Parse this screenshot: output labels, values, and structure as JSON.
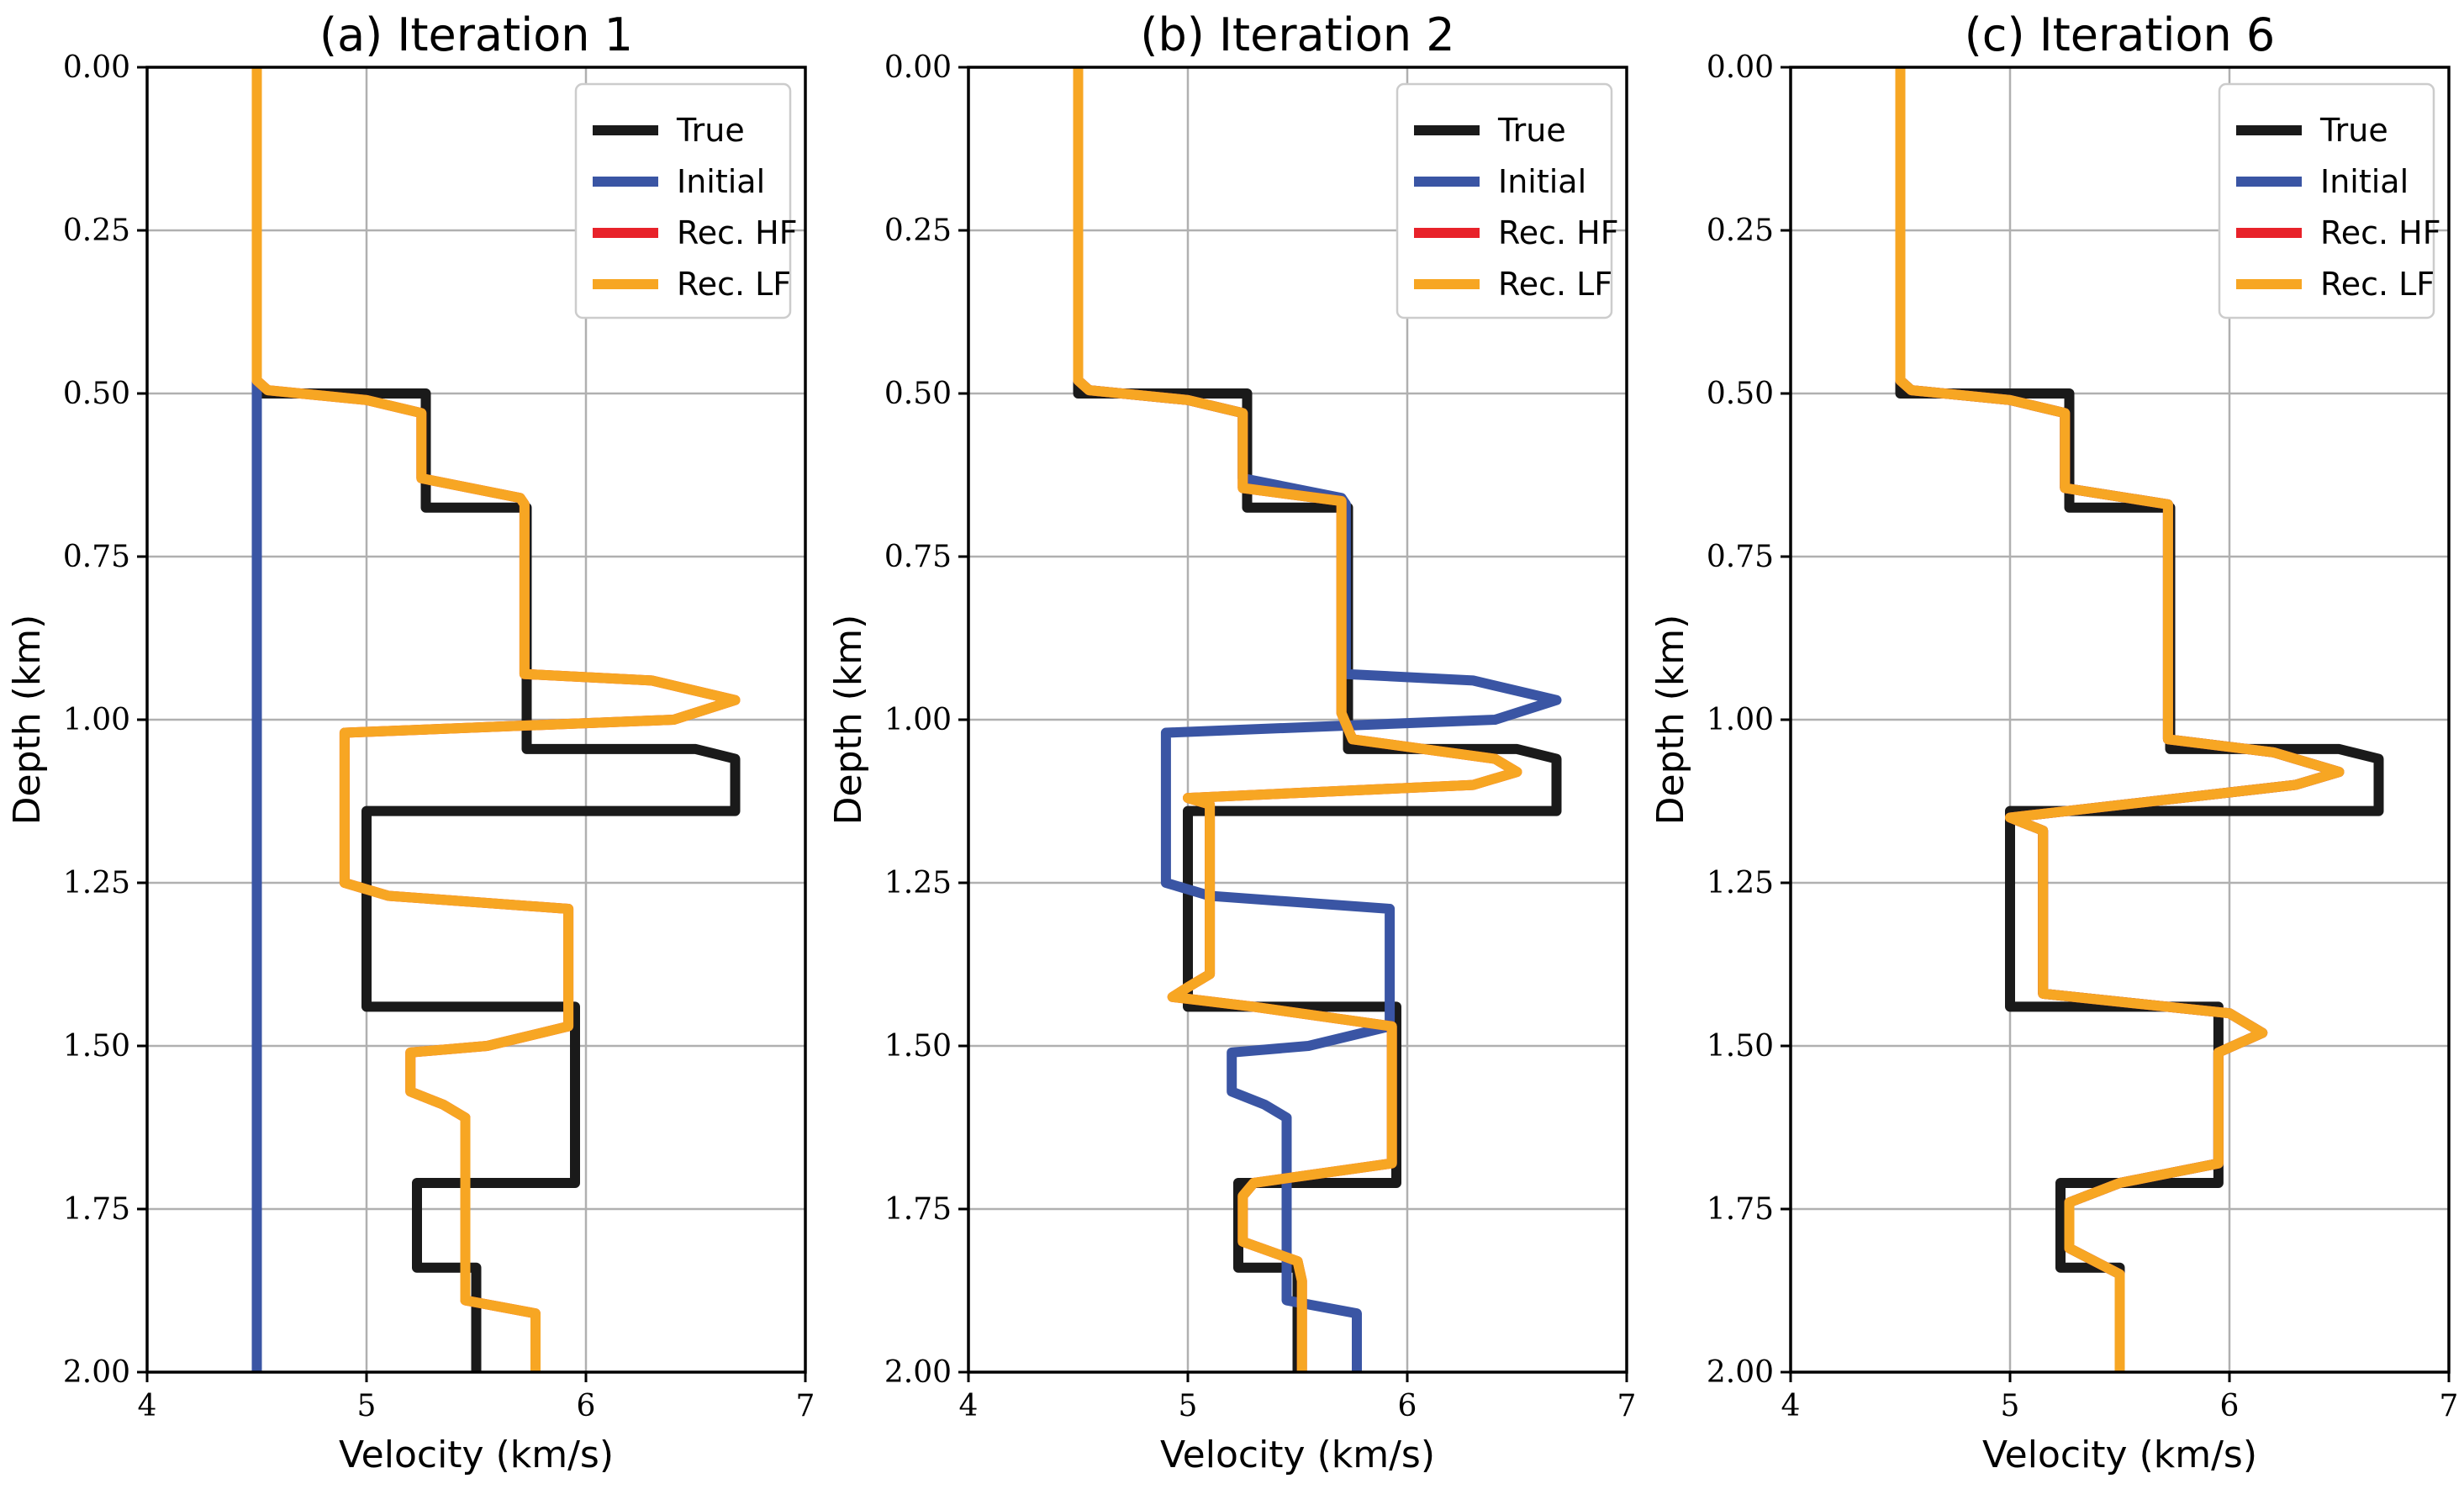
{
  "chart_data": [
    {
      "type": "line",
      "title": "(a) Iteration 1",
      "xlabel": "Velocity (km/s)",
      "ylabel": "Depth (km)",
      "xlim": [
        4,
        7
      ],
      "ylim": [
        2.0,
        0.0
      ],
      "xticks": [
        "4",
        "5",
        "6",
        "7"
      ],
      "yticks": [
        "0.00",
        "0.25",
        "0.50",
        "0.75",
        "1.00",
        "1.25",
        "1.50",
        "1.75",
        "2.00"
      ],
      "grid": true,
      "legend_position": "top-right",
      "series": [
        {
          "name": "True",
          "color": "#1a1a1a",
          "points": [
            [
              4.5,
              0
            ],
            [
              4.5,
              0.5
            ],
            [
              5.27,
              0.5
            ],
            [
              5.27,
              0.675
            ],
            [
              5.73,
              0.675
            ],
            [
              5.73,
              1.045
            ],
            [
              6.5,
              1.045
            ],
            [
              6.68,
              1.06
            ],
            [
              6.68,
              1.14
            ],
            [
              5.0,
              1.14
            ],
            [
              5.0,
              1.44
            ],
            [
              5.95,
              1.44
            ],
            [
              5.95,
              1.71
            ],
            [
              5.23,
              1.71
            ],
            [
              5.23,
              1.84
            ],
            [
              5.5,
              1.84
            ],
            [
              5.5,
              2.0
            ]
          ]
        },
        {
          "name": "Initial",
          "color": "#3a55a4",
          "points": [
            [
              4.5,
              0
            ],
            [
              4.5,
              2.0
            ]
          ]
        },
        {
          "name": "Rec. HF",
          "color": "#e8222a",
          "points": [
            [
              4.5,
              0
            ],
            [
              4.5,
              0.48
            ],
            [
              4.55,
              0.495
            ],
            [
              5.0,
              0.51
            ],
            [
              5.25,
              0.53
            ],
            [
              5.25,
              0.63
            ],
            [
              5.7,
              0.66
            ],
            [
              5.72,
              0.67
            ],
            [
              5.72,
              0.93
            ],
            [
              6.3,
              0.94
            ],
            [
              6.68,
              0.97
            ],
            [
              6.4,
              1.0
            ],
            [
              4.9,
              1.02
            ],
            [
              4.9,
              1.25
            ],
            [
              5.1,
              1.27
            ],
            [
              5.92,
              1.29
            ],
            [
              5.92,
              1.47
            ],
            [
              5.55,
              1.5
            ],
            [
              5.2,
              1.51
            ],
            [
              5.2,
              1.57
            ],
            [
              5.35,
              1.59
            ],
            [
              5.45,
              1.61
            ],
            [
              5.45,
              1.89
            ],
            [
              5.77,
              1.91
            ],
            [
              5.77,
              2.0
            ]
          ]
        },
        {
          "name": "Rec. LF",
          "color": "#f7a623",
          "points": [
            [
              4.5,
              0
            ],
            [
              4.5,
              0.48
            ],
            [
              4.55,
              0.495
            ],
            [
              5.0,
              0.51
            ],
            [
              5.25,
              0.53
            ],
            [
              5.25,
              0.63
            ],
            [
              5.7,
              0.66
            ],
            [
              5.72,
              0.67
            ],
            [
              5.72,
              0.93
            ],
            [
              6.3,
              0.94
            ],
            [
              6.68,
              0.97
            ],
            [
              6.4,
              1.0
            ],
            [
              4.9,
              1.02
            ],
            [
              4.9,
              1.25
            ],
            [
              5.1,
              1.27
            ],
            [
              5.92,
              1.29
            ],
            [
              5.92,
              1.47
            ],
            [
              5.55,
              1.5
            ],
            [
              5.2,
              1.51
            ],
            [
              5.2,
              1.57
            ],
            [
              5.35,
              1.59
            ],
            [
              5.45,
              1.61
            ],
            [
              5.45,
              1.89
            ],
            [
              5.77,
              1.91
            ],
            [
              5.77,
              2.0
            ]
          ]
        }
      ]
    },
    {
      "type": "line",
      "title": "(b) Iteration 2",
      "xlabel": "Velocity (km/s)",
      "ylabel": "Depth (km)",
      "xlim": [
        4,
        7
      ],
      "ylim": [
        2.0,
        0.0
      ],
      "xticks": [
        "4",
        "5",
        "6",
        "7"
      ],
      "yticks": [
        "0.00",
        "0.25",
        "0.50",
        "0.75",
        "1.00",
        "1.25",
        "1.50",
        "1.75",
        "2.00"
      ],
      "grid": true,
      "legend_position": "top-right",
      "series": [
        {
          "name": "True",
          "color": "#1a1a1a",
          "points": [
            [
              4.5,
              0
            ],
            [
              4.5,
              0.5
            ],
            [
              5.27,
              0.5
            ],
            [
              5.27,
              0.675
            ],
            [
              5.73,
              0.675
            ],
            [
              5.73,
              1.045
            ],
            [
              6.5,
              1.045
            ],
            [
              6.68,
              1.06
            ],
            [
              6.68,
              1.14
            ],
            [
              5.0,
              1.14
            ],
            [
              5.0,
              1.44
            ],
            [
              5.95,
              1.44
            ],
            [
              5.95,
              1.71
            ],
            [
              5.23,
              1.71
            ],
            [
              5.23,
              1.84
            ],
            [
              5.5,
              1.84
            ],
            [
              5.5,
              2.0
            ]
          ]
        },
        {
          "name": "Initial",
          "color": "#3a55a4",
          "points": [
            [
              4.5,
              0
            ],
            [
              4.5,
              0.48
            ],
            [
              4.55,
              0.495
            ],
            [
              5.0,
              0.51
            ],
            [
              5.25,
              0.53
            ],
            [
              5.25,
              0.63
            ],
            [
              5.7,
              0.66
            ],
            [
              5.72,
              0.67
            ],
            [
              5.72,
              0.93
            ],
            [
              6.3,
              0.94
            ],
            [
              6.68,
              0.97
            ],
            [
              6.4,
              1.0
            ],
            [
              4.9,
              1.02
            ],
            [
              4.9,
              1.25
            ],
            [
              5.1,
              1.27
            ],
            [
              5.92,
              1.29
            ],
            [
              5.92,
              1.47
            ],
            [
              5.55,
              1.5
            ],
            [
              5.2,
              1.51
            ],
            [
              5.2,
              1.57
            ],
            [
              5.35,
              1.59
            ],
            [
              5.45,
              1.61
            ],
            [
              5.45,
              1.89
            ],
            [
              5.77,
              1.91
            ],
            [
              5.77,
              2.0
            ]
          ]
        },
        {
          "name": "Rec. HF",
          "color": "#e8222a",
          "points": [
            [
              4.5,
              0
            ],
            [
              4.5,
              0.48
            ],
            [
              4.55,
              0.495
            ],
            [
              5.0,
              0.51
            ],
            [
              5.25,
              0.53
            ],
            [
              5.25,
              0.645
            ],
            [
              5.7,
              0.665
            ],
            [
              5.7,
              0.99
            ],
            [
              5.75,
              1.03
            ],
            [
              6.4,
              1.06
            ],
            [
              6.5,
              1.08
            ],
            [
              6.3,
              1.1
            ],
            [
              5.0,
              1.12
            ],
            [
              5.1,
              1.13
            ],
            [
              5.1,
              1.39
            ],
            [
              5.0,
              1.41
            ],
            [
              4.93,
              1.425
            ],
            [
              5.3,
              1.44
            ],
            [
              5.93,
              1.47
            ],
            [
              5.93,
              1.68
            ],
            [
              5.3,
              1.71
            ],
            [
              5.25,
              1.73
            ],
            [
              5.25,
              1.8
            ],
            [
              5.5,
              1.83
            ],
            [
              5.52,
              1.86
            ],
            [
              5.52,
              2.0
            ]
          ]
        },
        {
          "name": "Rec. LF",
          "color": "#f7a623",
          "points": [
            [
              4.5,
              0
            ],
            [
              4.5,
              0.48
            ],
            [
              4.55,
              0.495
            ],
            [
              5.0,
              0.51
            ],
            [
              5.25,
              0.53
            ],
            [
              5.25,
              0.645
            ],
            [
              5.7,
              0.665
            ],
            [
              5.7,
              0.99
            ],
            [
              5.75,
              1.03
            ],
            [
              6.4,
              1.06
            ],
            [
              6.5,
              1.08
            ],
            [
              6.3,
              1.1
            ],
            [
              5.0,
              1.12
            ],
            [
              5.1,
              1.13
            ],
            [
              5.1,
              1.39
            ],
            [
              5.0,
              1.41
            ],
            [
              4.93,
              1.425
            ],
            [
              5.3,
              1.44
            ],
            [
              5.93,
              1.47
            ],
            [
              5.93,
              1.68
            ],
            [
              5.3,
              1.71
            ],
            [
              5.25,
              1.73
            ],
            [
              5.25,
              1.8
            ],
            [
              5.5,
              1.83
            ],
            [
              5.52,
              1.86
            ],
            [
              5.52,
              2.0
            ]
          ]
        }
      ]
    },
    {
      "type": "line",
      "title": "(c) Iteration 6",
      "xlabel": "Velocity (km/s)",
      "ylabel": "Depth (km)",
      "xlim": [
        4,
        7
      ],
      "ylim": [
        2.0,
        0.0
      ],
      "xticks": [
        "4",
        "5",
        "6",
        "7"
      ],
      "yticks": [
        "0.00",
        "0.25",
        "0.50",
        "0.75",
        "1.00",
        "1.25",
        "1.50",
        "1.75",
        "2.00"
      ],
      "grid": true,
      "legend_position": "top-right",
      "series": [
        {
          "name": "True",
          "color": "#1a1a1a",
          "points": [
            [
              4.5,
              0
            ],
            [
              4.5,
              0.5
            ],
            [
              5.27,
              0.5
            ],
            [
              5.27,
              0.675
            ],
            [
              5.73,
              0.675
            ],
            [
              5.73,
              1.045
            ],
            [
              6.5,
              1.045
            ],
            [
              6.68,
              1.06
            ],
            [
              6.68,
              1.14
            ],
            [
              5.0,
              1.14
            ],
            [
              5.0,
              1.44
            ],
            [
              5.95,
              1.44
            ],
            [
              5.95,
              1.71
            ],
            [
              5.23,
              1.71
            ],
            [
              5.23,
              1.84
            ],
            [
              5.5,
              1.84
            ],
            [
              5.5,
              2.0
            ]
          ]
        },
        {
          "name": "Initial",
          "color": "#3a55a4",
          "points": [
            [
              4.5,
              0
            ],
            [
              4.5,
              0.48
            ],
            [
              4.55,
              0.495
            ],
            [
              5.0,
              0.51
            ],
            [
              5.25,
              0.53
            ],
            [
              5.25,
              0.645
            ],
            [
              5.72,
              0.67
            ],
            [
              5.72,
              1.03
            ],
            [
              6.2,
              1.05
            ],
            [
              6.5,
              1.08
            ],
            [
              6.3,
              1.1
            ],
            [
              5.0,
              1.15
            ],
            [
              5.15,
              1.17
            ],
            [
              5.15,
              1.42
            ],
            [
              6.0,
              1.45
            ],
            [
              6.15,
              1.48
            ],
            [
              5.95,
              1.51
            ],
            [
              5.95,
              1.68
            ],
            [
              5.5,
              1.71
            ],
            [
              5.27,
              1.74
            ],
            [
              5.27,
              1.81
            ],
            [
              5.5,
              1.85
            ],
            [
              5.5,
              2.0
            ]
          ]
        },
        {
          "name": "Rec. HF",
          "color": "#e8222a",
          "points": [
            [
              4.5,
              0
            ],
            [
              4.5,
              0.48
            ],
            [
              4.55,
              0.495
            ],
            [
              5.0,
              0.51
            ],
            [
              5.25,
              0.53
            ],
            [
              5.25,
              0.645
            ],
            [
              5.72,
              0.67
            ],
            [
              5.72,
              1.03
            ],
            [
              6.2,
              1.05
            ],
            [
              6.5,
              1.08
            ],
            [
              6.3,
              1.1
            ],
            [
              5.0,
              1.15
            ],
            [
              5.15,
              1.17
            ],
            [
              5.15,
              1.42
            ],
            [
              6.0,
              1.45
            ],
            [
              6.15,
              1.48
            ],
            [
              5.95,
              1.51
            ],
            [
              5.95,
              1.68
            ],
            [
              5.5,
              1.71
            ],
            [
              5.27,
              1.74
            ],
            [
              5.27,
              1.81
            ],
            [
              5.5,
              1.85
            ],
            [
              5.5,
              2.0
            ]
          ]
        },
        {
          "name": "Rec. LF",
          "color": "#f7a623",
          "points": [
            [
              4.5,
              0
            ],
            [
              4.5,
              0.48
            ],
            [
              4.55,
              0.495
            ],
            [
              5.0,
              0.51
            ],
            [
              5.25,
              0.53
            ],
            [
              5.25,
              0.645
            ],
            [
              5.72,
              0.67
            ],
            [
              5.72,
              1.03
            ],
            [
              6.2,
              1.05
            ],
            [
              6.5,
              1.08
            ],
            [
              6.3,
              1.1
            ],
            [
              5.0,
              1.15
            ],
            [
              5.15,
              1.17
            ],
            [
              5.15,
              1.42
            ],
            [
              6.0,
              1.45
            ],
            [
              6.15,
              1.48
            ],
            [
              5.95,
              1.51
            ],
            [
              5.95,
              1.68
            ],
            [
              5.5,
              1.71
            ],
            [
              5.27,
              1.74
            ],
            [
              5.27,
              1.81
            ],
            [
              5.5,
              1.85
            ],
            [
              5.5,
              2.0
            ]
          ]
        }
      ]
    }
  ]
}
